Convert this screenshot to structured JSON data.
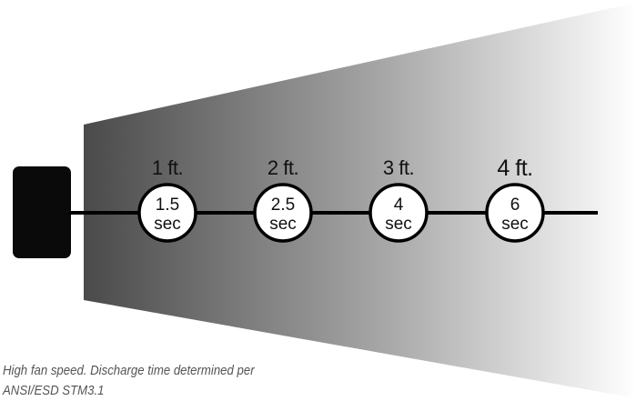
{
  "points": [
    {
      "distance": "1 ft.",
      "time_value": "1.5",
      "time_unit": "sec",
      "large": false
    },
    {
      "distance": "2 ft.",
      "time_value": "2.5",
      "time_unit": "sec",
      "large": false
    },
    {
      "distance": "3 ft.",
      "time_value": "4",
      "time_unit": "sec",
      "large": false
    },
    {
      "distance": "4 ft.",
      "time_value": "6",
      "time_unit": "sec",
      "large": true
    }
  ],
  "caption": "High fan speed. Discharge time determined per ANSI/ESD STM3.1",
  "colors": {
    "beam_dark": "#4a4a4a",
    "beam_light": "#ffffff",
    "ionizer": "#0a0a0a",
    "line": "#000000"
  }
}
